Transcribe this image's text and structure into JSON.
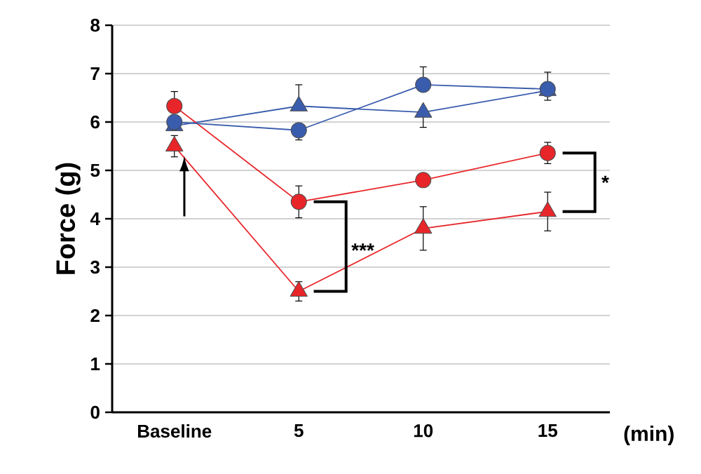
{
  "chart_data": {
    "type": "line",
    "ylabel": "Force (g)",
    "xlabel": "(min)",
    "categories": [
      "Baseline",
      "5",
      "10",
      "15"
    ],
    "series": [
      {
        "color": "#e8262a",
        "marker": "circle",
        "values": [
          6.33,
          4.35,
          4.8,
          5.36
        ],
        "errors": [
          [
            6.33,
            6.63
          ],
          [
            4.02,
            4.68
          ],
          0.1,
          [
            5.14,
            5.58
          ]
        ]
      },
      {
        "color": "#e8262a",
        "marker": "triangle",
        "values": [
          5.5,
          2.5,
          3.8,
          4.15
        ],
        "errors": [
          0.22,
          0.2,
          0.45,
          0.4
        ]
      },
      {
        "color": "#3a5cad",
        "marker": "circle",
        "values": [
          6.0,
          5.83,
          6.77,
          6.68
        ],
        "errors": [
          null,
          [
            5.63,
            5.83
          ],
          [
            6.77,
            7.14
          ],
          [
            6.68,
            7.03
          ]
        ]
      },
      {
        "color": "#3a5cad",
        "marker": "triangle",
        "values": [
          5.92,
          6.33,
          6.2,
          6.65
        ],
        "errors": [
          null,
          [
            6.33,
            6.77
          ],
          [
            5.89,
            6.2
          ],
          [
            6.45,
            6.65
          ]
        ]
      }
    ],
    "ylim": [
      0,
      8
    ],
    "yticks": [
      0,
      1,
      2,
      3,
      4,
      5,
      6,
      7,
      8
    ],
    "grid": "y",
    "annotations": [
      "***",
      "*"
    ]
  }
}
